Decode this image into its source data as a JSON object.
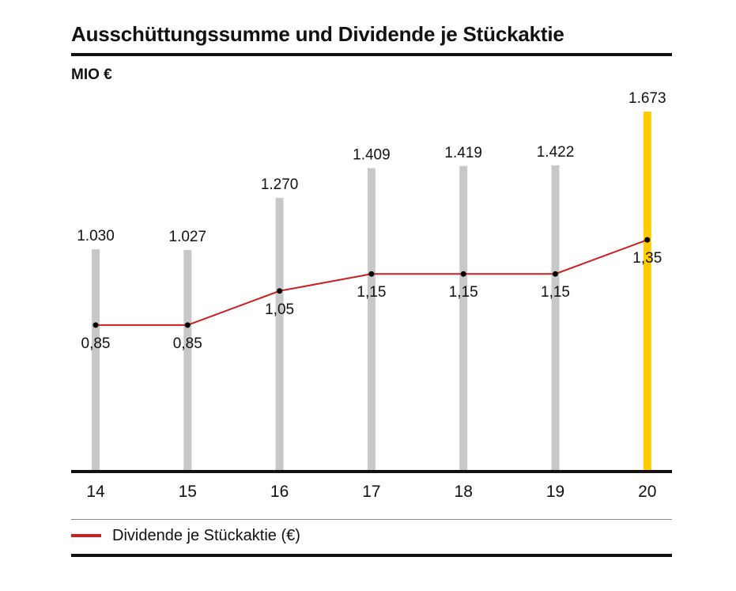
{
  "title": "Ausschüttungssumme und Dividende je Stückaktie",
  "unit_label": "MIO €",
  "legend": {
    "label": "Dividende je Stückaktie (€)",
    "color": "#cc1f1f"
  },
  "colors": {
    "bar": "#c8c8c8",
    "highlight_bar": "#ffcc00",
    "line": "#cc1f1f",
    "point": "#000000",
    "axis": "#111111"
  },
  "chart_data": {
    "type": "bar",
    "categories": [
      "14",
      "15",
      "16",
      "17",
      "18",
      "19",
      "20"
    ],
    "bar_labels": [
      "1.030",
      "1.027",
      "1.270",
      "1.409",
      "1.419",
      "1.422",
      "1.673"
    ],
    "series": [
      {
        "name": "",
        "kind": "bar",
        "unit": "MIO €",
        "values": [
          1030,
          1027,
          1270,
          1409,
          1419,
          1422,
          1673
        ],
        "highlight_index": 6
      },
      {
        "name": "Dividende je Stückaktie (€)",
        "kind": "line",
        "unit": "€",
        "values": [
          0.85,
          0.85,
          1.05,
          1.15,
          1.15,
          1.15,
          1.35
        ],
        "labels": [
          "0,85",
          "0,85",
          "1,05",
          "1,15",
          "1,15",
          "1,15",
          "1,35"
        ]
      }
    ],
    "bar_ylim": [
      0,
      1673
    ],
    "line_ylim": [
      0,
      2.2
    ],
    "grid": false,
    "legend_position": "bottom"
  }
}
